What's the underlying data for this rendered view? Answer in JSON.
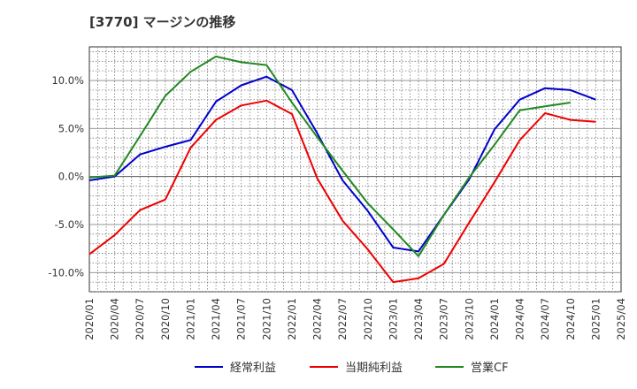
{
  "chart_data": {
    "type": "line",
    "title": "[3770]  マージンの推移",
    "xlabel": "",
    "ylabel": "",
    "ylim": [
      -12,
      13.5
    ],
    "grid": true,
    "legend_position": "bottom",
    "x_tick_labels": [
      "2020/01",
      "2020/04",
      "2020/07",
      "2020/10",
      "2021/01",
      "2021/04",
      "2021/07",
      "2021/10",
      "2022/01",
      "2022/04",
      "2022/07",
      "2022/10",
      "2023/01",
      "2023/04",
      "2023/07",
      "2023/10",
      "2024/01",
      "2024/04",
      "2024/07",
      "2024/10",
      "2025/01",
      "2025/04"
    ],
    "y_ticks": [
      -10,
      -5,
      0,
      5,
      10
    ],
    "y_tick_labels": [
      "-10.0%",
      "-5.0%",
      "0.0%",
      "5.0%",
      "10.0%"
    ],
    "series": [
      {
        "name": "経常利益",
        "color": "#0000cc",
        "values": [
          -0.4,
          0.0,
          2.3,
          3.1,
          3.8,
          7.8,
          9.5,
          10.4,
          9.0,
          4.5,
          -0.4,
          -3.6,
          -7.4,
          -7.8,
          -4.0,
          -0.3,
          4.9,
          8.0,
          9.2,
          9.0,
          8.0,
          null
        ]
      },
      {
        "name": "当期純利益",
        "color": "#ee0000",
        "values": [
          -8.1,
          -6.1,
          -3.5,
          -2.4,
          3.0,
          5.9,
          7.4,
          7.9,
          6.5,
          -0.2,
          -4.6,
          -7.6,
          -11.0,
          -10.6,
          -9.1,
          -4.8,
          -0.6,
          3.8,
          6.6,
          5.9,
          5.7,
          null
        ]
      },
      {
        "name": "営業CF",
        "color": "#228822",
        "values": [
          -0.1,
          0.1,
          4.2,
          8.4,
          10.9,
          12.5,
          11.9,
          11.6,
          7.7,
          4.1,
          0.6,
          -2.8,
          -5.5,
          -8.3,
          -4.0,
          -0.1,
          3.3,
          6.9,
          7.3,
          7.7,
          null,
          null
        ]
      }
    ]
  }
}
